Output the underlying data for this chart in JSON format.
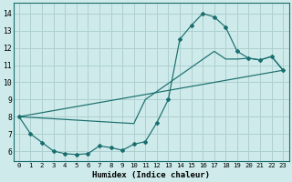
{
  "xlabel": "Humidex (Indice chaleur)",
  "bg_color": "#ceeaea",
  "grid_color": "#aed0d0",
  "line_color": "#1a6e6e",
  "x_ticks": [
    0,
    1,
    2,
    3,
    4,
    5,
    6,
    7,
    8,
    9,
    10,
    11,
    12,
    13,
    14,
    15,
    16,
    17,
    18,
    19,
    20,
    21,
    22,
    23
  ],
  "y_ticks": [
    6,
    7,
    8,
    9,
    10,
    11,
    12,
    13,
    14
  ],
  "xlim": [
    -0.5,
    23.5
  ],
  "ylim": [
    5.4,
    14.6
  ],
  "line1_x": [
    0,
    1,
    2,
    3,
    4,
    5,
    6,
    7,
    8,
    9,
    10,
    11,
    12,
    13,
    14,
    15,
    16,
    17,
    18,
    19,
    20,
    21,
    22,
    23
  ],
  "line1_y": [
    8.0,
    7.0,
    6.5,
    6.0,
    5.85,
    5.8,
    5.85,
    6.3,
    6.2,
    6.05,
    6.4,
    6.55,
    7.65,
    9.0,
    12.5,
    13.3,
    14.0,
    13.8,
    13.2,
    11.8,
    11.4,
    11.3,
    11.5,
    10.7
  ],
  "line2_x": [
    0,
    23
  ],
  "line2_y": [
    8.0,
    10.7
  ],
  "line3_x": [
    0,
    10,
    11,
    17,
    18,
    19,
    20,
    21,
    22,
    23
  ],
  "line3_y": [
    8.0,
    7.6,
    9.0,
    11.8,
    11.35,
    11.35,
    11.4,
    11.3,
    11.5,
    10.7
  ]
}
